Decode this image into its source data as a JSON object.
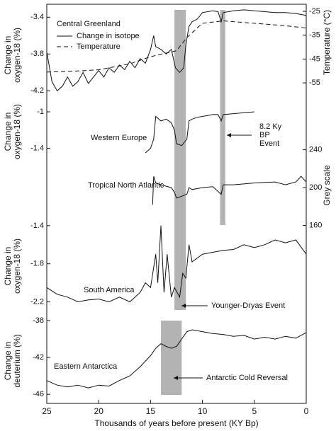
{
  "chart_data": [
    {
      "type": "line",
      "title": "Central Greenland",
      "ylabel_lines": [
        "Change in",
        "oxygen-18 (%)"
      ],
      "y2label": "Temperature (°C)",
      "ylim": [
        -4.29,
        -3.29
      ],
      "yticks": [
        -3.4,
        -3.8,
        -4.2
      ],
      "y2lim": [
        -61.8,
        -23.2
      ],
      "y2ticks": [
        -25,
        -35,
        -45,
        -55
      ],
      "series": [
        {
          "name": "Change in isotope",
          "color": "#111111",
          "dash": false,
          "x": [
            25,
            24.5,
            24,
            23.5,
            23,
            22.5,
            22,
            21.5,
            21,
            20.5,
            20,
            19.5,
            19,
            18.5,
            18,
            17.5,
            17,
            16.5,
            16,
            15.5,
            15,
            14.7,
            14.5,
            14,
            13.5,
            13,
            12.8,
            12.6,
            12.2,
            11.8,
            11.6,
            11.3,
            11,
            10.5,
            10,
            9,
            8.5,
            8.2,
            8,
            7,
            6,
            5,
            4,
            3,
            2,
            1,
            0
          ],
          "values": [
            -3.78,
            -4.1,
            -4.2,
            -4.15,
            -4.05,
            -4.15,
            -4.1,
            -4.0,
            -4.12,
            -4.05,
            -3.98,
            -4.05,
            -3.95,
            -4.0,
            -3.92,
            -3.97,
            -3.88,
            -3.95,
            -3.85,
            -3.9,
            -3.75,
            -3.6,
            -3.72,
            -3.75,
            -3.8,
            -3.75,
            -3.85,
            -3.95,
            -4.0,
            -3.95,
            -3.7,
            -3.5,
            -3.45,
            -3.42,
            -3.35,
            -3.33,
            -3.34,
            -3.45,
            -3.35,
            -3.33,
            -3.32,
            -3.33,
            -3.34,
            -3.35,
            -3.35,
            -3.36,
            -3.38
          ]
        },
        {
          "name": "Temperature",
          "color": "#111111",
          "dash": true,
          "axis": "y2",
          "x": [
            25,
            22,
            20,
            17,
            15,
            13,
            12.5,
            11.5,
            10,
            8,
            5,
            2,
            0
          ],
          "values": [
            -50.5,
            -50,
            -49.5,
            -47,
            -44,
            -42,
            -41.5,
            -36,
            -30,
            -29,
            -30,
            -31,
            -32
          ]
        }
      ]
    },
    {
      "type": "line",
      "title": "Western Europe",
      "ylabel_lines": [
        "Change in",
        "oxygen-18 (%)"
      ],
      "ylim": [
        -1.52,
        -0.86
      ],
      "yticks": [
        -1.0,
        -1.4
      ],
      "series": [
        {
          "name": "Western Europe",
          "color": "#111111",
          "dash": false,
          "x": [
            15.5,
            15,
            14.7,
            14.5,
            14,
            13.5,
            13,
            12.7,
            12.5,
            12,
            11.5,
            11.3,
            11,
            10.5,
            10,
            9,
            8.5,
            8.2,
            8,
            7,
            6,
            5
          ],
          "values": [
            -1.45,
            -1.4,
            -1.3,
            -1.05,
            -1.1,
            -1.08,
            -1.12,
            -1.2,
            -1.35,
            -1.37,
            -1.3,
            -1.1,
            -1.08,
            -1.06,
            -1.05,
            -1.03,
            -1.03,
            -1.1,
            -1.03,
            -1.02,
            -1.01,
            -1.0
          ]
        }
      ]
    },
    {
      "type": "line",
      "title": "Tropical North Atlantic",
      "y2label": "Grey scale",
      "y2lim": [
        159,
        230
      ],
      "y2ticks": [
        240,
        200,
        160
      ],
      "series": [
        {
          "name": "Tropical North Atlantic",
          "color": "#111111",
          "dash": false,
          "axis": "y2",
          "x": [
            14.8,
            14.7,
            14.5,
            14,
            13,
            12.7,
            12.5,
            12,
            11.5,
            11.3,
            11,
            10,
            9,
            8.2,
            8,
            7,
            5,
            3,
            2,
            1,
            0.5,
            0
          ],
          "values": [
            182,
            212,
            205,
            203,
            200,
            195,
            189,
            191,
            193,
            200,
            198,
            200,
            201,
            193,
            203,
            203,
            205,
            206,
            203,
            206,
            212,
            206
          ]
        }
      ]
    },
    {
      "type": "line",
      "title": "South America",
      "ylabel_lines": [
        "Change in",
        "oxygen-18 (%)"
      ],
      "ylim": [
        -2.3,
        -1.26
      ],
      "yticks": [
        -1.4,
        -1.8,
        -2.2
      ],
      "series": [
        {
          "name": "South America",
          "color": "#111111",
          "dash": false,
          "x": [
            25,
            24,
            23,
            22,
            21,
            20,
            19,
            18,
            17,
            16,
            15.5,
            15,
            14.5,
            14.3,
            14,
            13.7,
            13.4,
            13,
            12.7,
            12.2,
            11.9,
            11.6,
            11.3,
            11,
            10,
            9,
            8,
            7,
            6,
            5,
            4,
            3,
            2,
            1,
            0
          ],
          "values": [
            -2.05,
            -2.12,
            -2.15,
            -2.2,
            -2.18,
            -2.17,
            -2.2,
            -2.15,
            -2.2,
            -2.1,
            -2.0,
            -2.05,
            -1.7,
            -2.0,
            -1.4,
            -2.1,
            -1.7,
            -2.15,
            -2.05,
            -2.15,
            -1.9,
            -1.95,
            -1.6,
            -1.78,
            -1.7,
            -1.68,
            -1.66,
            -1.65,
            -1.6,
            -1.63,
            -1.6,
            -1.55,
            -1.58,
            -1.55,
            -1.7
          ]
        }
      ]
    },
    {
      "type": "line",
      "title": "Eastern Antarctica",
      "ylabel_lines": [
        "Change in",
        "deuterium (%)"
      ],
      "ylim": [
        -46.6,
        -37
      ],
      "yticks": [
        -38,
        -42,
        -46
      ],
      "xlabel": "Thousands of years before present (KY Bp)",
      "xlim": [
        25,
        0
      ],
      "xticks": [
        25,
        20,
        15,
        10,
        5,
        0
      ],
      "series": [
        {
          "name": "Eastern Antarctica",
          "color": "#111111",
          "dash": false,
          "x": [
            25,
            24,
            23,
            22,
            21,
            20,
            19,
            18,
            17,
            16.5,
            16,
            15,
            14.5,
            14,
            13.5,
            13,
            12.5,
            12,
            11.5,
            11,
            10,
            9,
            8,
            7,
            6,
            5,
            4,
            3,
            2,
            1,
            0
          ],
          "values": [
            -44.5,
            -45,
            -45.2,
            -45,
            -45.3,
            -45,
            -45.1,
            -44.5,
            -44,
            -43.5,
            -43,
            -41.8,
            -41,
            -40.5,
            -40.8,
            -41,
            -40.8,
            -40,
            -39.2,
            -39,
            -39.2,
            -39.4,
            -39.5,
            -39.7,
            -39.6,
            -40,
            -39.8,
            -40,
            -39.7,
            -39.9,
            -39.3
          ]
        }
      ]
    }
  ],
  "events": [
    {
      "label_lines": [
        "8.2 Ky",
        "BP",
        "Event"
      ],
      "xrange": [
        8.3,
        7.8
      ],
      "color": "#b3b3b3"
    },
    {
      "label_lines": [
        "Younger-Dryas Event"
      ],
      "xrange": [
        12.7,
        11.6
      ],
      "color": "#b3b3b3"
    },
    {
      "label_lines": [
        "Antarctic Cold Reversal"
      ],
      "xrange": [
        14,
        12
      ],
      "color": "#b3b3b3"
    }
  ]
}
